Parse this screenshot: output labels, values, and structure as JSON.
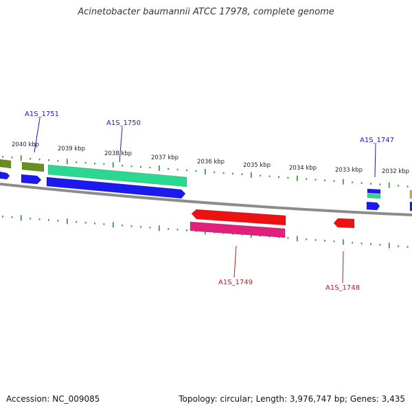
{
  "title": "Acinetobacter baumannii ATCC 17978, complete genome",
  "footer": {
    "accession": "Accession: NC_009085",
    "topology": "Topology: circular; Length: 3,976,747 bp; Genes: 3,435"
  },
  "colors": {
    "backbone": "#8c8c8c",
    "tick": "#2f8f2f",
    "plus_label": "#1a1acc",
    "minus_label": "#cc1111",
    "blue": "#1a1aee",
    "green": "#2bd88f",
    "olive": "#6b8e23",
    "red": "#ee1111",
    "magenta": "#e0207a",
    "orange": "#f0a020"
  },
  "kbp_labels": [
    "2040 kbp",
    "2039 kbp",
    "2038 kbp",
    "2037 kbp",
    "2036 kbp",
    "2035 kbp",
    "2034 kbp",
    "2033 kbp",
    "2032 kbp"
  ],
  "genes": [
    {
      "label": "A1S_1751",
      "strand": "+"
    },
    {
      "label": "A1S_1750",
      "strand": "+"
    },
    {
      "label": "A1S_1747",
      "strand": "+"
    },
    {
      "label": "A1S_1749",
      "strand": "-"
    },
    {
      "label": "A1S_1748",
      "strand": "-"
    }
  ]
}
